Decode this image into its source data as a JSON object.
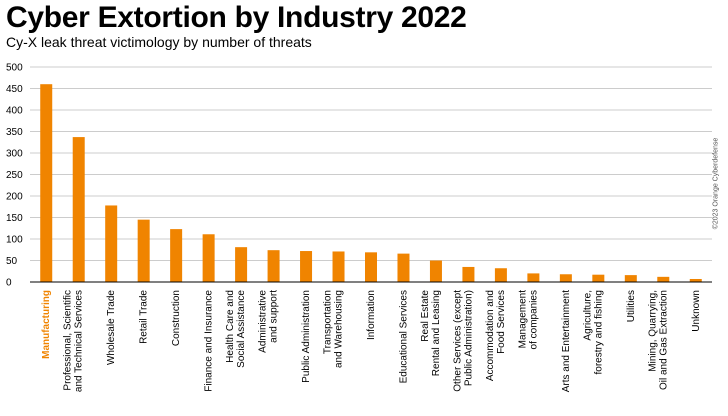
{
  "header": {
    "title": "Cyber Extortion by Industry 2022",
    "subtitle": "Cy-X leak threat victimology by number of threats"
  },
  "copyright": "©2023 Orange Cyberdefense",
  "colors": {
    "bar": "#F08400",
    "highlight_label": "#F08400",
    "grid": "#cccccc",
    "axis": "#000000"
  },
  "chart_data": {
    "type": "bar",
    "title": "Cyber Extortion by Industry 2022",
    "subtitle": "Cy-X leak threat victimology by number of threats",
    "xlabel": "",
    "ylabel": "",
    "ylim": [
      0,
      500
    ],
    "yticks": [
      0,
      50,
      100,
      150,
      200,
      250,
      300,
      350,
      400,
      450,
      500
    ],
    "grid": true,
    "highlight_category": 0,
    "categories": [
      [
        "Manufacturing"
      ],
      [
        "Professional, Scientific",
        "and Technical Services"
      ],
      [
        "Wholesale Trade"
      ],
      [
        "Retail Trade"
      ],
      [
        "Construction"
      ],
      [
        "Finance and Insurance"
      ],
      [
        "Health Care and",
        "Social Assistance"
      ],
      [
        "Administrative",
        "and support"
      ],
      [
        "Public Administration"
      ],
      [
        "Transportation",
        "and Warehousing"
      ],
      [
        "Information"
      ],
      [
        "Educational Services"
      ],
      [
        "Real Estate",
        "Rental and Leasing"
      ],
      [
        "Other Services (except",
        "Public Administration)"
      ],
      [
        "Accommodation and",
        "Food Services"
      ],
      [
        "Management",
        "of companies"
      ],
      [
        "Arts and Entertainment"
      ],
      [
        "Agriculture,",
        "forestry and fishing"
      ],
      [
        "Utilities"
      ],
      [
        "Mining, Quarrying,",
        "Oil and Gas Extraction"
      ],
      [
        "Unknown"
      ]
    ],
    "values": [
      460,
      337,
      178,
      145,
      123,
      111,
      81,
      74,
      72,
      71,
      69,
      66,
      50,
      35,
      32,
      20,
      18,
      17,
      16,
      12,
      7
    ]
  }
}
